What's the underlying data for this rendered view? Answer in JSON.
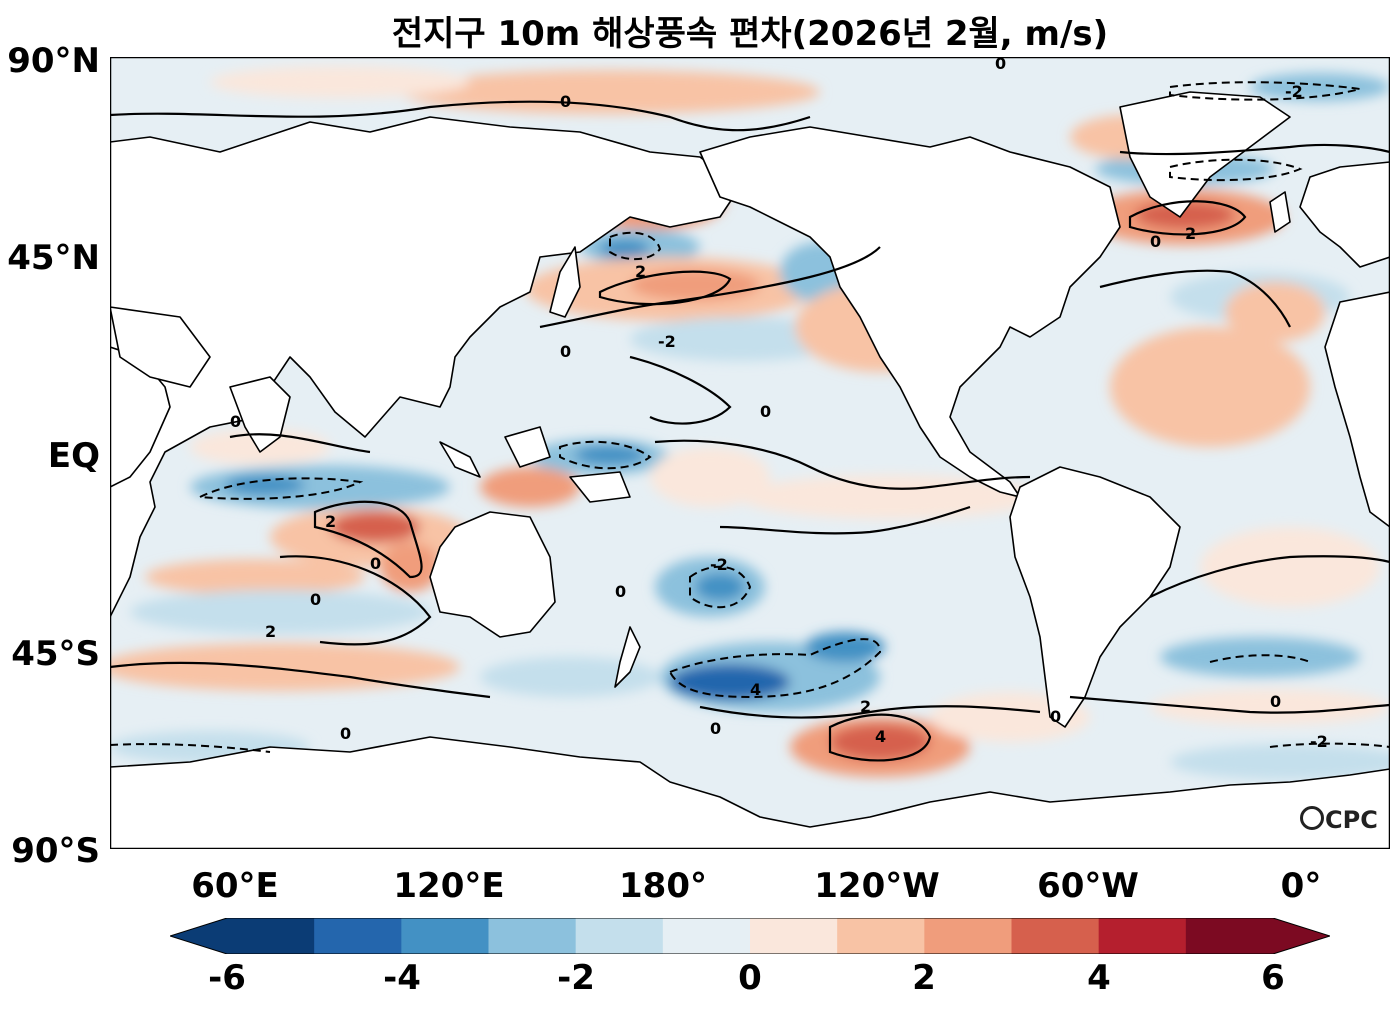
{
  "title": "전지구 10m 해상풍속 편차(2026년 2월, m/s)",
  "source_logo": "CPC",
  "lat_ticks": [
    "90°N",
    "45°N",
    "EQ",
    "45°S",
    "90°S"
  ],
  "lon_ticks": [
    "60°E",
    "120°E",
    "180°",
    "120°W",
    "60°W",
    "0°"
  ],
  "colorbar": {
    "ticks": [
      "-6",
      "-4",
      "-2",
      "0",
      "2",
      "4",
      "6"
    ],
    "levels": [
      -6,
      -5,
      -4,
      -3,
      -2,
      -1,
      0,
      1,
      2,
      3,
      4,
      5,
      6
    ],
    "colors": [
      "#0b3c75",
      "#2466ad",
      "#4391c4",
      "#8cc1dd",
      "#c4dfec",
      "#e6eff4",
      "#fae7dc",
      "#f8c3a5",
      "#f09d7c",
      "#d6604d",
      "#b51f2e",
      "#7c0a22"
    ],
    "extend": "both"
  },
  "contour_labels": [
    "0",
    "2",
    "-2",
    "4",
    "-4"
  ],
  "colors": {
    "land": "#ffffff",
    "coast": "#000000",
    "contour": "#000000"
  }
}
